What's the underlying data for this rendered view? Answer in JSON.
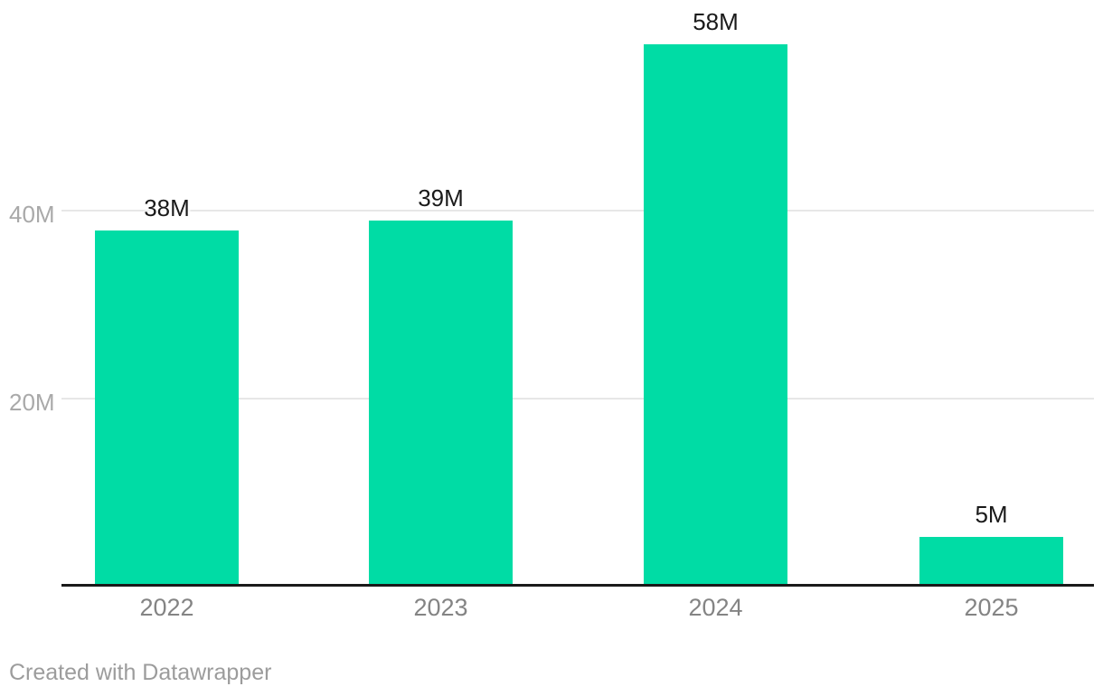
{
  "chart_data": {
    "type": "bar",
    "categories": [
      "2022",
      "2023",
      "2024",
      "2025"
    ],
    "values": [
      38,
      39,
      58,
      5
    ],
    "value_labels": [
      "38M",
      "39M",
      "58M",
      "5M"
    ],
    "yticks": [
      {
        "value": 40,
        "label": "40M"
      },
      {
        "value": 20,
        "label": "20M"
      }
    ],
    "ylim": [
      0,
      62
    ],
    "grid": true,
    "title": "",
    "xlabel": "",
    "ylabel": "",
    "legend": "none",
    "colors": {
      "bar": "#00DCA5",
      "value_label_text": "#1a1a1a",
      "axis_line": "#1a1a1a",
      "gridline": "#e7e7e7",
      "ytick_text": "#a9a9a9",
      "category_text": "#848484",
      "credit_text": "#9c9c9c",
      "background": "#ffffff"
    }
  },
  "footer": {
    "credit": "Created with Datawrapper"
  }
}
